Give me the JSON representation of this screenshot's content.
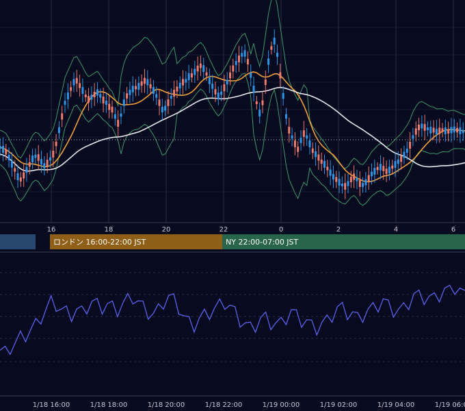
{
  "colors": {
    "background": "#080a1f",
    "grid": "#2a2d45",
    "up_candle": "#2f95e6",
    "down_candle": "#ef7c6e",
    "ma_fast": "#f2a23c",
    "ma_slow": "#e9e9ee",
    "bollinger": "#3c9a6b",
    "oscillator": "#5b63ee",
    "tokyo_session": "#27486e",
    "london_session": "#8f5e17",
    "ny_session": "#29654a"
  },
  "chart_data": [
    {
      "type": "candlestick",
      "title": "",
      "x_tick_labels": [
        "16",
        "18",
        "20",
        "22",
        "0",
        "2",
        "4",
        "6"
      ],
      "overlays": [
        "bollinger_bands",
        "moving_average_fast",
        "moving_average_slow",
        "horizontal_dotted_price_line"
      ],
      "grid": true,
      "legend": "none"
    },
    {
      "type": "session_bar",
      "sessions": [
        {
          "name": "tokyo",
          "label": ""
        },
        {
          "name": "london",
          "label": "ロンドン 16:00-22:00 JST"
        },
        {
          "name": "ny",
          "label": "NY 22:00-07:00 JST"
        }
      ]
    },
    {
      "type": "line",
      "title": "",
      "x_tick_labels": [
        "1/18 16:00",
        "1/18 18:00",
        "1/18 20:00",
        "1/18 22:00",
        "1/19 00:00",
        "1/19 02:00",
        "1/19 04:00",
        "1/19 06:00"
      ],
      "values": [
        45,
        44,
        46,
        48,
        50,
        51,
        53,
        55,
        58,
        61,
        64,
        63,
        61,
        60,
        59,
        61,
        60,
        62,
        64,
        63,
        62,
        63,
        62,
        61,
        63,
        65,
        66,
        64,
        62,
        60,
        59,
        61,
        64,
        66,
        65,
        62,
        58,
        56,
        55,
        57,
        59,
        60,
        61,
        63,
        64,
        62,
        60,
        57,
        55,
        54,
        55,
        57,
        58,
        56,
        55,
        56,
        58,
        60,
        59,
        57,
        56,
        55,
        54,
        55,
        57,
        59,
        61,
        62,
        60,
        59,
        58,
        59,
        60,
        62,
        63,
        64,
        63,
        61,
        60,
        62,
        64,
        66,
        67,
        66,
        65,
        66,
        67,
        68,
        69,
        70,
        68,
        67
      ]
    }
  ]
}
